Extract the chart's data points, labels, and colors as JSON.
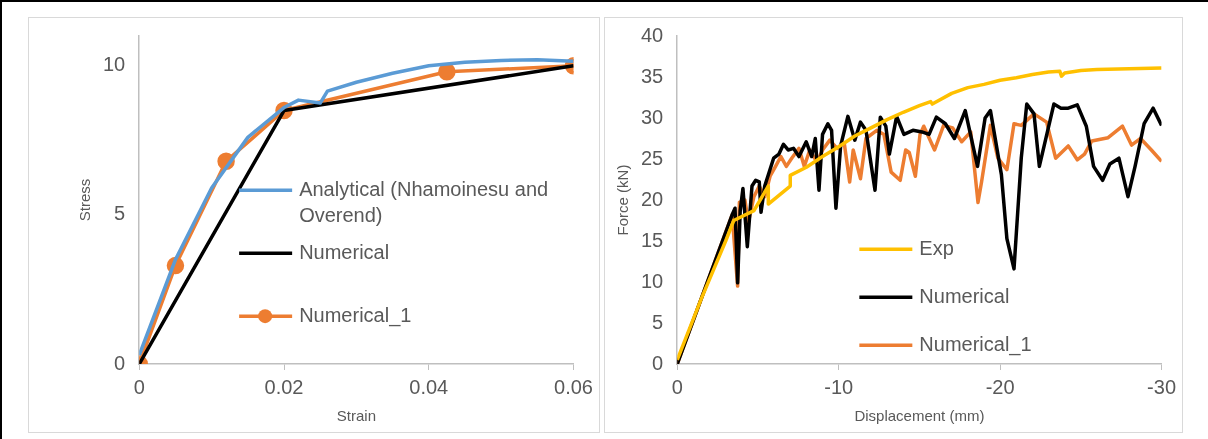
{
  "chart_data": [
    {
      "type": "line",
      "xlabel": "Strain",
      "ylabel": "Stress",
      "xlim": [
        0,
        0.06
      ],
      "xticks": [
        0,
        0.02,
        0.04,
        0.06
      ],
      "ylim": [
        0,
        11
      ],
      "yticks": [
        0,
        5,
        10
      ],
      "grid": false,
      "legend": "right",
      "series": [
        {
          "name": "Analytical (Nhamoinesu and Overend)",
          "color": "#5b9bd5",
          "marker": "none",
          "x": [
            0,
            0.005,
            0.01,
            0.015,
            0.02,
            0.022,
            0.025,
            0.026,
            0.03,
            0.035,
            0.04,
            0.045,
            0.05,
            0.055,
            0.06
          ],
          "values": [
            0.3,
            3.5,
            5.9,
            7.6,
            8.6,
            8.85,
            8.75,
            9.15,
            9.45,
            9.75,
            10.0,
            10.12,
            10.18,
            10.2,
            10.15
          ]
        },
        {
          "name": "Numerical",
          "color": "#000000",
          "marker": "none",
          "x": [
            0,
            0.02,
            0.06
          ],
          "values": [
            0,
            8.5,
            10
          ]
        },
        {
          "name": "Numerical_1",
          "color": "#ed7d31",
          "marker": "circle",
          "x": [
            0,
            0.005,
            0.012,
            0.02,
            0.0425,
            0.06
          ],
          "values": [
            0,
            3.3,
            6.8,
            8.5,
            9.8,
            10
          ]
        }
      ]
    },
    {
      "type": "line",
      "xlabel": "Displacement (mm)",
      "ylabel": "Force (kN)",
      "xlim": [
        0,
        -30
      ],
      "xticks": [
        0,
        -10,
        -20,
        -30
      ],
      "ylim": [
        0,
        40
      ],
      "yticks": [
        0,
        5,
        10,
        15,
        20,
        25,
        30,
        35,
        40
      ],
      "grid": false,
      "legend": "bottom",
      "series": [
        {
          "name": "Exp",
          "color": "#ffc000",
          "marker": "none",
          "x": [
            0,
            -1.5,
            -3,
            -3.5,
            -4.75,
            -5.64,
            -5.64,
            -7,
            -7,
            -8,
            -9,
            -10,
            -11,
            -12,
            -13,
            -14,
            -15,
            -15.7,
            -15.8,
            -17,
            -18,
            -19,
            -20,
            -21,
            -22,
            -23,
            -23.7,
            -23.8,
            -24,
            -25,
            -26,
            -28,
            -30
          ],
          "values": [
            0.5,
            8,
            15,
            17.5,
            18.7,
            21.7,
            19.5,
            21.7,
            23,
            24,
            25.3,
            26.5,
            27.8,
            28.8,
            29.8,
            30.7,
            31.5,
            32,
            31.7,
            33,
            33.7,
            34.1,
            34.6,
            34.9,
            35.3,
            35.6,
            35.7,
            35.1,
            35.5,
            35.8,
            35.9,
            36,
            36.1
          ]
        },
        {
          "name": "Numerical",
          "color": "#000000",
          "marker": "none",
          "x": [
            0,
            -3.4,
            -3.58,
            -3.74,
            -3.9,
            -4.07,
            -4.34,
            -4.63,
            -4.86,
            -5.08,
            -5.19,
            -5.42,
            -5.97,
            -6.3,
            -6.58,
            -6.87,
            -7.2,
            -7.54,
            -7.99,
            -8.33,
            -8.55,
            -8.78,
            -9.0,
            -9.33,
            -9.56,
            -9.83,
            -10.12,
            -10.57,
            -11.0,
            -11.35,
            -11.69,
            -12.25,
            -12.58,
            -12.92,
            -13.14,
            -13.59,
            -14.04,
            -14.6,
            -15.16,
            -15.6,
            -16.05,
            -16.61,
            -17.17,
            -17.84,
            -18.6,
            -19.07,
            -19.4,
            -20.08,
            -20.42,
            -20.86,
            -21.31,
            -21.65,
            -22.1,
            -22.43,
            -23.33,
            -23.77,
            -24.22,
            -24.78,
            -25.34,
            -25.79,
            -26.35,
            -26.8,
            -27.36,
            -27.92,
            -28.36,
            -28.92,
            -29.48,
            -30
          ],
          "values": [
            0,
            18.2,
            19,
            9.9,
            18.7,
            21.4,
            14.3,
            21.7,
            22.4,
            22.2,
            18.5,
            21.7,
            25.1,
            25.6,
            26.8,
            26.1,
            26.3,
            25.3,
            27.1,
            25.3,
            27.5,
            21.2,
            28,
            29.3,
            28.5,
            19,
            26.6,
            30.2,
            27.3,
            29.5,
            28.5,
            21.2,
            30.1,
            29,
            25.6,
            30.2,
            28,
            28.5,
            28.3,
            28,
            30.1,
            29.3,
            27.5,
            30.9,
            24.1,
            30,
            30.9,
            23.1,
            15.3,
            11.6,
            25.1,
            31.7,
            30.5,
            24.1,
            31.7,
            31.2,
            31.2,
            31.6,
            29,
            24.1,
            22.4,
            24.4,
            25.1,
            20.4,
            24.1,
            29.3,
            31.2,
            29.1
          ]
        },
        {
          "name": "Numerical_1",
          "color": "#ed7d31",
          "marker": "none",
          "x": [
            0,
            -3.4,
            -3.74,
            -3.85,
            -4.19,
            -4.41,
            -4.75,
            -5.08,
            -5.42,
            -5.75,
            -6.09,
            -6.42,
            -6.76,
            -7.09,
            -7.54,
            -7.87,
            -8.21,
            -8.66,
            -9.0,
            -9.45,
            -9.9,
            -10.34,
            -10.68,
            -10.9,
            -11.35,
            -11.69,
            -12.36,
            -12.8,
            -13.25,
            -13.81,
            -14.15,
            -14.37,
            -14.75,
            -15.04,
            -15.27,
            -15.94,
            -16.5,
            -17.06,
            -17.62,
            -18.18,
            -18.63,
            -18.85,
            -19.4,
            -19.86,
            -20.42,
            -20.86,
            -21.31,
            -22.1,
            -22.88,
            -23.44,
            -24.22,
            -24.78,
            -25.23,
            -25.68,
            -26.69,
            -27.58,
            -28.14,
            -28.7,
            -29.37,
            -30
          ],
          "values": [
            0,
            18.2,
            9.5,
            19.7,
            20,
            17.3,
            20.4,
            21.7,
            20.4,
            22.9,
            24.1,
            25.3,
            24.1,
            25.1,
            26.3,
            24.1,
            26.1,
            24.6,
            26.1,
            27.3,
            26.3,
            27,
            22.2,
            26.1,
            22.6,
            27.5,
            28.5,
            28,
            23.4,
            22.4,
            26.1,
            25.8,
            22.9,
            28,
            29,
            26.1,
            29.1,
            28.8,
            27.1,
            28.3,
            19.7,
            22.2,
            29.1,
            25.1,
            23.7,
            29.3,
            29.1,
            30.5,
            29.5,
            25.1,
            26.6,
            24.9,
            25.6,
            27.2,
            27.6,
            29,
            26.7,
            27.5,
            26.1,
            24.7
          ]
        }
      ]
    }
  ]
}
